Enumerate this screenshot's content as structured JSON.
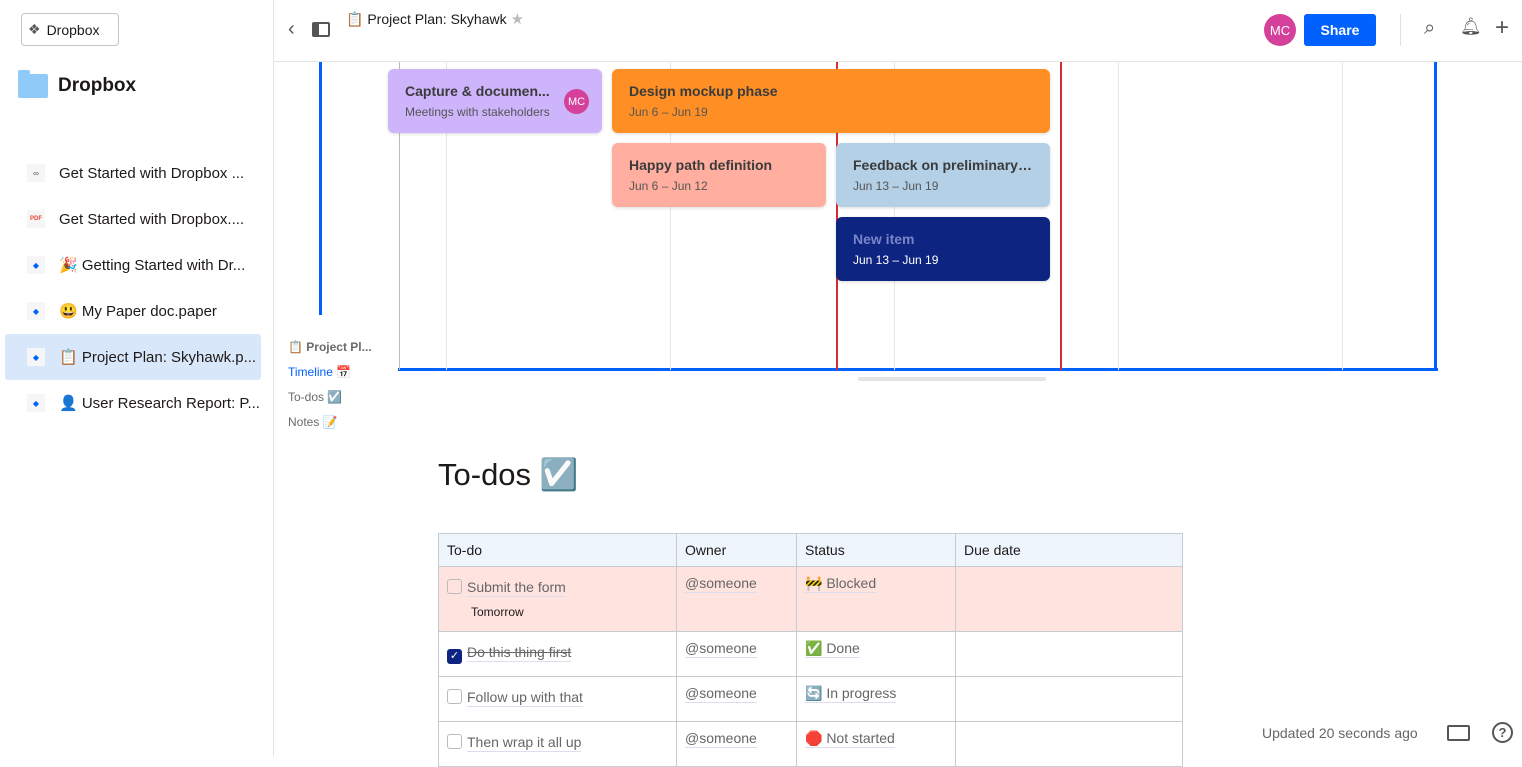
{
  "sidebar": {
    "app_button": "Dropbox",
    "folder_title": "Dropbox",
    "files": [
      {
        "icon": "link-icon",
        "label": "Get Started with Dropbox ..."
      },
      {
        "icon": "pdf-icon",
        "label": "Get Started with Dropbox...."
      },
      {
        "icon": "paper-icon",
        "label": "🎉 Getting Started with Dr..."
      },
      {
        "icon": "paper-icon",
        "label": "😃 My Paper doc.paper"
      },
      {
        "icon": "paper-icon",
        "label": "📋 Project Plan: Skyhawk.p...",
        "selected": true
      },
      {
        "icon": "paper-icon",
        "label": "👤 User Research Report: P..."
      }
    ]
  },
  "header": {
    "title": "📋 Project Plan: Skyhawk",
    "avatar": "MC",
    "share": "Share"
  },
  "timeline": {
    "items": [
      {
        "title": "Capture & documen...",
        "sub": "Meetings with stakeholders",
        "avatar": "MC",
        "color": "#cdb4fb"
      },
      {
        "title": "Design mockup phase",
        "sub": "Jun 6 – Jun 19",
        "color": "#ff8f24"
      },
      {
        "title": "Happy path definition",
        "sub": "Jun 6 – Jun 12",
        "color": "#ffaea0"
      },
      {
        "title": "Feedback on preliminary ...",
        "sub": "Jun 13 – Jun 19",
        "color": "#b4d0e6"
      },
      {
        "title": "New item",
        "sub": "Jun 13 – Jun 19",
        "color": "#0d2481"
      }
    ]
  },
  "toc": [
    "📋 Project Pl...",
    "Timeline 📅",
    "To-dos ☑️",
    "Notes 📝"
  ],
  "todos": {
    "heading": "To-dos ☑️",
    "columns": [
      "To-do",
      "Owner",
      "Status",
      "Due date"
    ],
    "rows": [
      {
        "task": "Submit the form",
        "note": "Tomorrow",
        "done": false,
        "owner": "@someone",
        "status": "🚧 Blocked",
        "due": ""
      },
      {
        "task": "Do this thing first",
        "done": true,
        "owner": "@someone",
        "status": "✅ Done",
        "due": ""
      },
      {
        "task": "Follow up with that",
        "done": false,
        "owner": "@someone",
        "status": "🔄 In progress",
        "due": ""
      },
      {
        "task": "Then wrap it all up",
        "done": false,
        "owner": "@someone",
        "status": "🛑 Not started",
        "due": ""
      }
    ]
  },
  "footer": {
    "updated": "Updated 20 seconds ago"
  }
}
